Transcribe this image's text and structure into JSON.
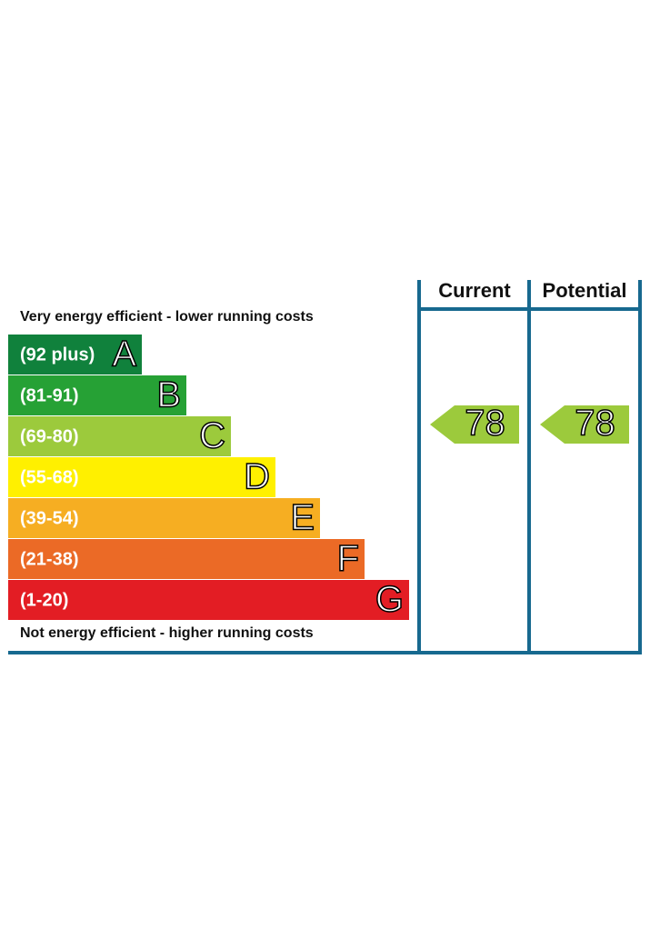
{
  "top_label": "Very energy efficient - lower running costs",
  "bottom_label": "Not energy efficient - higher running costs",
  "bands": [
    {
      "range": "(92 plus)",
      "letter": "A",
      "color": "#10813c"
    },
    {
      "range": "(81-91)",
      "letter": "B",
      "color": "#26a135"
    },
    {
      "range": "(69-80)",
      "letter": "C",
      "color": "#9cca3c"
    },
    {
      "range": "(55-68)",
      "letter": "D",
      "color": "#fff000"
    },
    {
      "range": "(39-54)",
      "letter": "E",
      "color": "#f6ae22"
    },
    {
      "range": "(21-38)",
      "letter": "F",
      "color": "#eb6a26"
    },
    {
      "range": "(1-20)",
      "letter": "G",
      "color": "#e31d24"
    }
  ],
  "columns": [
    {
      "header": "Current",
      "value": "78"
    },
    {
      "header": "Potential",
      "value": "78"
    }
  ]
}
